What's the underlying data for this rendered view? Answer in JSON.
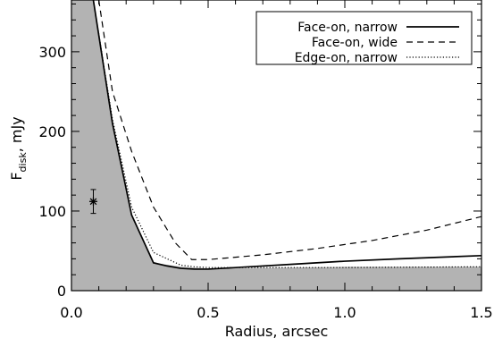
{
  "chart_data": {
    "type": "line",
    "xlabel": "Radius, arcsec",
    "ylabel_main": "F",
    "ylabel_sub": "disk",
    "ylabel_unit": ", mJy",
    "xlim": [
      0.0,
      1.5
    ],
    "ylim": [
      0,
      365
    ],
    "x_ticks": [
      0.0,
      0.5,
      1.0,
      1.5
    ],
    "x_tick_labels": [
      "0.0",
      "0.5",
      "1.0",
      "1.5"
    ],
    "y_ticks": [
      0,
      100,
      200,
      300
    ],
    "y_tick_labels": [
      "0",
      "100",
      "200",
      "300"
    ],
    "grid": false,
    "legend_position": "top-right",
    "shaded_region": {
      "color": "#b3b3b3",
      "x": [
        0.0,
        0.08,
        0.15,
        0.22,
        0.3,
        0.4,
        0.5,
        0.6,
        1.0,
        1.5
      ],
      "y": [
        365,
        365,
        210,
        95,
        35,
        30,
        28,
        28,
        30,
        30
      ]
    },
    "series": [
      {
        "name": "Face-on, narrow",
        "style": "solid",
        "x": [
          0.08,
          0.15,
          0.22,
          0.3,
          0.35,
          0.4,
          0.45,
          0.5,
          0.6,
          0.8,
          1.0,
          1.2,
          1.5
        ],
        "y": [
          365,
          210,
          95,
          35,
          31,
          28,
          27,
          27,
          29,
          33,
          37,
          40,
          44
        ]
      },
      {
        "name": "Face-on, wide",
        "style": "dashed",
        "x": [
          0.1,
          0.15,
          0.22,
          0.3,
          0.38,
          0.44,
          0.5,
          0.7,
          0.9,
          1.1,
          1.3,
          1.5
        ],
        "y": [
          365,
          250,
          175,
          105,
          60,
          39,
          39,
          45,
          53,
          63,
          76,
          93
        ]
      },
      {
        "name": "Edge-on, narrow",
        "style": "dotted",
        "x": [
          0.08,
          0.15,
          0.22,
          0.3,
          0.4,
          0.45,
          0.5,
          0.6,
          1.0,
          1.5
        ],
        "y": [
          365,
          215,
          105,
          48,
          32,
          30,
          29,
          29,
          29,
          30
        ]
      }
    ],
    "data_point": {
      "x": 0.08,
      "y": 112,
      "err_low": 97,
      "err_high": 127
    }
  }
}
